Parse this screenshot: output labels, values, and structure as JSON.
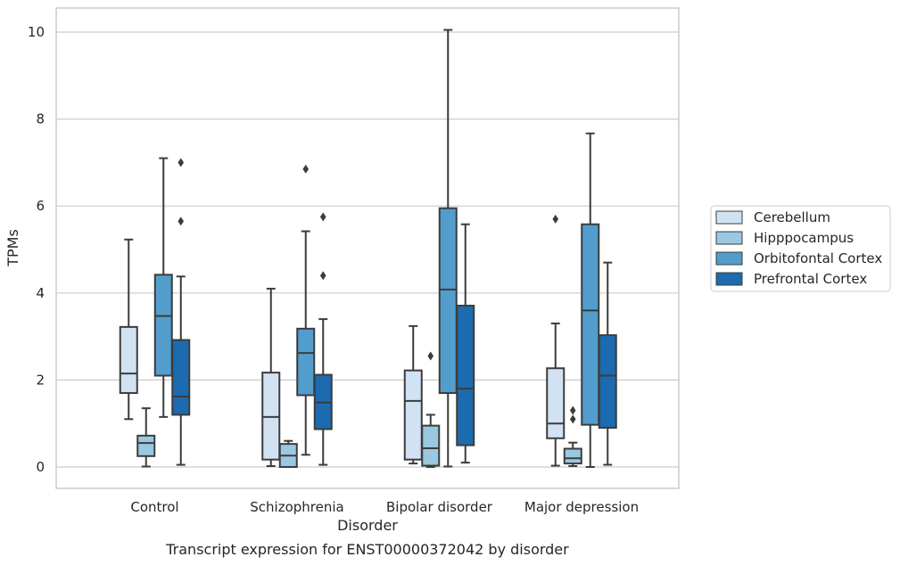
{
  "caption": "Transcript expression for ENST00000372042 by disorder",
  "chart_data": {
    "type": "box",
    "title": "",
    "xlabel": "Disorder",
    "ylabel": "TPMs",
    "ylim": [
      -0.5,
      10.55
    ],
    "yticks": [
      "0",
      "2",
      "4",
      "6",
      "8",
      "10"
    ],
    "grid": true,
    "legend_position": "right",
    "categories": [
      "Control",
      "Schizophrenia",
      "Bipolar disorder",
      "Major depression"
    ],
    "series": [
      {
        "name": "Cerebellum",
        "color": "#d1e2f2",
        "boxes": [
          {
            "whisker_low": 1.1,
            "q1": 1.7,
            "median": 2.15,
            "q3": 3.22,
            "whisker_high": 5.23,
            "outliers": []
          },
          {
            "whisker_low": 0.02,
            "q1": 0.17,
            "median": 1.15,
            "q3": 2.17,
            "whisker_high": 4.1,
            "outliers": []
          },
          {
            "whisker_low": 0.08,
            "q1": 0.17,
            "median": 1.52,
            "q3": 2.22,
            "whisker_high": 3.24,
            "outliers": []
          },
          {
            "whisker_low": 0.03,
            "q1": 0.66,
            "median": 1.0,
            "q3": 2.27,
            "whisker_high": 3.3,
            "outliers": [
              5.7
            ]
          }
        ]
      },
      {
        "name": "Hipppocampus",
        "color": "#9ac8e0",
        "boxes": [
          {
            "whisker_low": 0.01,
            "q1": 0.25,
            "median": 0.55,
            "q3": 0.72,
            "whisker_high": 1.35,
            "outliers": []
          },
          {
            "whisker_low": 0.0,
            "q1": 0.0,
            "median": 0.26,
            "q3": 0.53,
            "whisker_high": 0.6,
            "outliers": []
          },
          {
            "whisker_low": 0.0,
            "q1": 0.03,
            "median": 0.43,
            "q3": 0.95,
            "whisker_high": 1.2,
            "outliers": [
              2.55
            ]
          },
          {
            "whisker_low": 0.02,
            "q1": 0.08,
            "median": 0.2,
            "q3": 0.42,
            "whisker_high": 0.56,
            "outliers": [
              1.1,
              1.3
            ]
          }
        ]
      },
      {
        "name": "Orbitofontal Cortex",
        "color": "#529dcc",
        "boxes": [
          {
            "whisker_low": 1.15,
            "q1": 2.1,
            "median": 3.47,
            "q3": 4.42,
            "whisker_high": 7.1,
            "outliers": []
          },
          {
            "whisker_low": 0.28,
            "q1": 1.65,
            "median": 2.62,
            "q3": 3.18,
            "whisker_high": 5.42,
            "outliers": [
              6.85
            ]
          },
          {
            "whisker_low": 0.01,
            "q1": 1.7,
            "median": 4.08,
            "q3": 5.95,
            "whisker_high": 10.05,
            "outliers": []
          },
          {
            "whisker_low": 0.0,
            "q1": 0.97,
            "median": 3.6,
            "q3": 5.58,
            "whisker_high": 7.67,
            "outliers": []
          }
        ]
      },
      {
        "name": "Prefrontal Cortex",
        "color": "#1c6aaf",
        "boxes": [
          {
            "whisker_low": 0.05,
            "q1": 1.2,
            "median": 1.62,
            "q3": 2.92,
            "whisker_high": 4.38,
            "outliers": [
              5.65,
              7.0
            ]
          },
          {
            "whisker_low": 0.05,
            "q1": 0.87,
            "median": 1.48,
            "q3": 2.12,
            "whisker_high": 3.4,
            "outliers": [
              4.4,
              5.75
            ]
          },
          {
            "whisker_low": 0.1,
            "q1": 0.5,
            "median": 1.8,
            "q3": 3.71,
            "whisker_high": 5.58,
            "outliers": []
          },
          {
            "whisker_low": 0.05,
            "q1": 0.9,
            "median": 2.1,
            "q3": 3.03,
            "whisker_high": 4.7,
            "outliers": []
          }
        ]
      }
    ]
  }
}
